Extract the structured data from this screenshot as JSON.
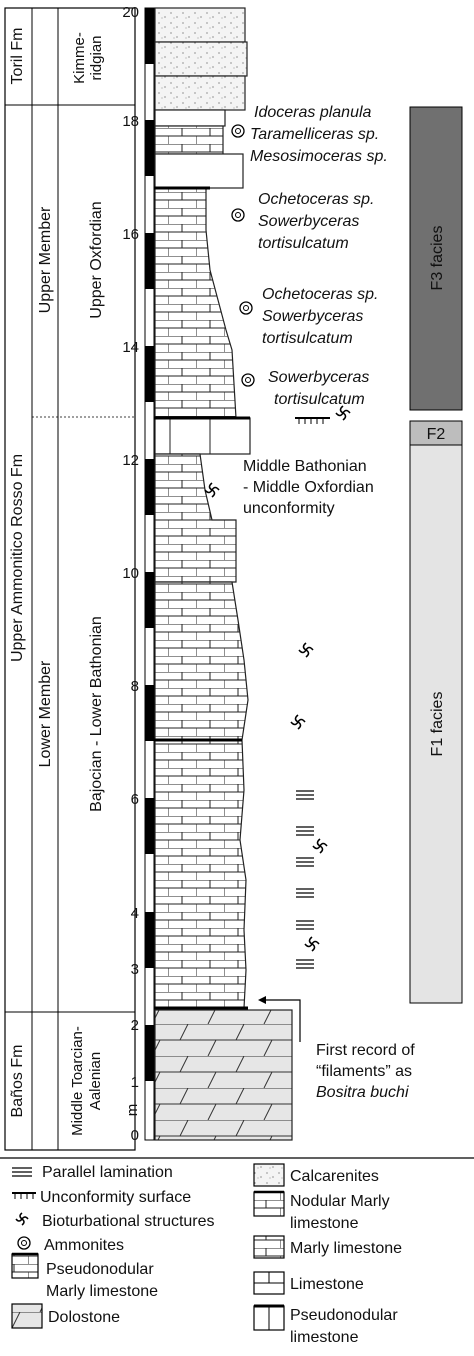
{
  "formations": {
    "toril": "Toril Fm",
    "rosso": "Upper Ammonitico Rosso Fm",
    "banos": "Baños Fm"
  },
  "members": {
    "upper": "Upper Member",
    "lower": "Lower Member"
  },
  "stages": {
    "kimmeridgian_line1": "Kimme-",
    "kimmeridgian_line2": "ridgian",
    "oxfordian": "Upper Oxfordian",
    "bajocian": "Bajocian - Lower Bathonian",
    "toarcian_line1": "Middle Toarcian-",
    "toarcian_line2": "Aalenian"
  },
  "scale": {
    "unit": "m",
    "ticks": [
      "0",
      "1",
      "2",
      "3",
      "4",
      "6",
      "8",
      "10",
      "12",
      "14",
      "16",
      "18",
      "20"
    ]
  },
  "fossils": {
    "group1": [
      "Idoceras planula",
      "Taramelliceras sp.",
      "Mesosimoceras sp."
    ],
    "group2": [
      "Ochetoceras sp.",
      "Sowerbyceras",
      "tortisulcatum"
    ],
    "group3": [
      "Ochetoceras sp.",
      "Sowerbyceras",
      "tortisulcatum"
    ],
    "group4": [
      "Sowerbyceras",
      "tortisulcatum"
    ]
  },
  "annotations": {
    "unconformity": [
      "Middle Bathonian",
      "- Middle Oxfordian",
      "unconformity"
    ],
    "first_record": [
      "First record of",
      "“filaments” as",
      "Bositra buchi"
    ]
  },
  "facies": {
    "f3": "F3 facies",
    "f2": "F2",
    "f1": "F1 facies",
    "colors": {
      "f3": "#707070",
      "f2": "#bdbdbd",
      "f1": "#e4e4e4"
    }
  },
  "legend": {
    "parallel": "Parallel lamination",
    "unconformity": "Unconformity surface",
    "bioturbation": "Bioturbational structures",
    "ammonites": "Ammonites",
    "pseudonodular_marly": [
      "Pseudonodular",
      "Marly limestone"
    ],
    "dolostone": "Dolostone",
    "calcarenites": "Calcarenites",
    "nodular_marly": [
      "Nodular Marly",
      "limestone"
    ],
    "marly_limestone": "Marly limestone",
    "limestone": "Limestone",
    "pseudonodular_limestone": [
      "Pseudonodular",
      "limestone"
    ]
  }
}
